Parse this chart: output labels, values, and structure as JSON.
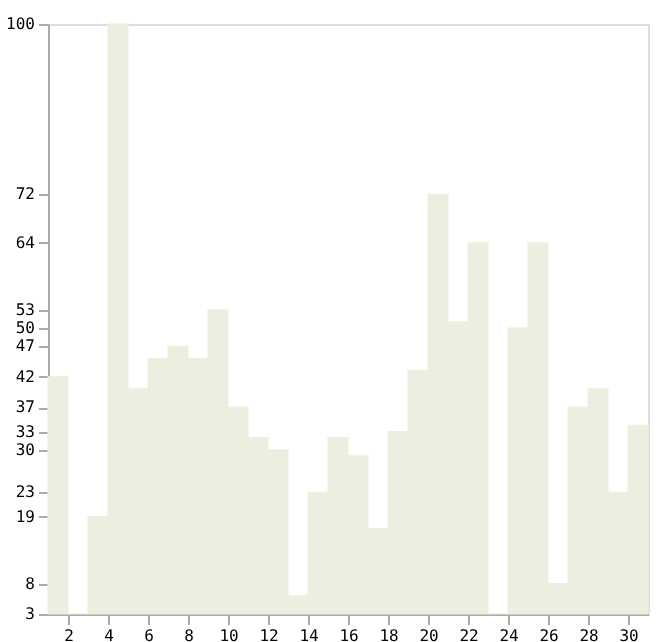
{
  "chart_data": {
    "type": "histogram",
    "bins": [
      1,
      2,
      3,
      4,
      5,
      6,
      7,
      8,
      9,
      10,
      11,
      12,
      13,
      14,
      15,
      16,
      17,
      18,
      19,
      20,
      21,
      22,
      23,
      24,
      25,
      26,
      27,
      28,
      29,
      30,
      31
    ],
    "values": [
      42,
      3,
      19,
      100,
      40,
      45,
      47,
      45,
      53,
      37,
      32,
      30,
      6,
      23,
      32,
      29,
      17,
      33,
      43,
      72,
      51,
      64,
      3,
      50,
      64,
      8,
      37,
      40,
      23,
      34
    ],
    "color": "#eeeee0",
    "xlim": [
      1,
      31
    ],
    "xticks": [
      2,
      4,
      6,
      8,
      10,
      12,
      14,
      16,
      18,
      20,
      22,
      24,
      26,
      28,
      30
    ],
    "ylim": [
      3,
      100
    ],
    "yticks": [
      3,
      8,
      19,
      23,
      30,
      33,
      37,
      42,
      47,
      50,
      53,
      64,
      72,
      100
    ],
    "grid": false
  }
}
